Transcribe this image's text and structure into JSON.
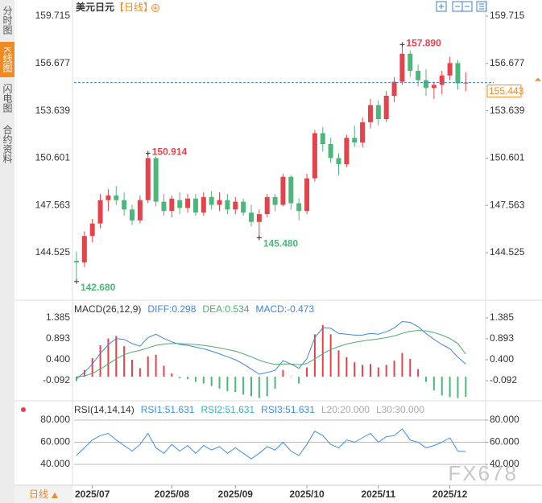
{
  "header": {
    "title": "美元日元",
    "period": "【日线】"
  },
  "sidebar": {
    "tabs": [
      "分时图",
      "K线图",
      "闪电图",
      "合约资料"
    ]
  },
  "footer": {
    "period": "日线"
  },
  "watermark": "FX678",
  "chart_data": [
    {
      "type": "candlestick",
      "open": [
        144.0,
        143.9,
        145.6,
        146.4,
        147.9,
        148.2,
        147.9,
        147.3,
        146.6,
        147.9,
        150.6,
        147.8,
        147.2,
        147.9,
        147.4,
        148.0,
        147.1,
        148.1,
        147.6,
        147.9,
        147.3,
        147.8,
        147.1,
        146.5,
        147.0,
        148.1,
        147.6,
        149.4,
        147.7,
        147.2,
        149.3,
        152.2,
        151.5,
        150.6,
        150.2,
        151.9,
        151.6,
        152.9,
        154.0,
        153.1,
        154.6,
        155.5,
        157.3,
        156.2,
        155.6,
        155.1,
        155.3,
        155.9,
        156.7,
        155.4
      ],
      "high": [
        144.6,
        145.9,
        146.7,
        148.3,
        148.6,
        148.8,
        148.4,
        147.6,
        148.2,
        150.914,
        150.7,
        148.3,
        148.2,
        148.4,
        148.3,
        148.3,
        148.4,
        148.5,
        148.4,
        148.3,
        148.1,
        148.0,
        147.6,
        147.3,
        148.3,
        148.3,
        149.6,
        149.5,
        148.0,
        149.6,
        152.4,
        152.6,
        151.9,
        150.9,
        152.1,
        152.7,
        153.2,
        154.4,
        154.3,
        154.9,
        155.8,
        157.89,
        157.5,
        156.6,
        156.3,
        155.5,
        156.2,
        157.1,
        156.9,
        156.1
      ],
      "low": [
        142.68,
        143.6,
        145.2,
        146.1,
        147.2,
        147.6,
        146.9,
        146.3,
        146.4,
        147.7,
        147.5,
        146.9,
        146.8,
        147.0,
        147.1,
        146.9,
        146.9,
        147.3,
        147.2,
        147.0,
        147.0,
        146.9,
        146.2,
        145.48,
        146.8,
        147.2,
        147.5,
        147.3,
        146.6,
        147.0,
        149.1,
        151.0,
        150.3,
        149.5,
        150.0,
        151.3,
        151.3,
        152.5,
        152.7,
        152.9,
        154.2,
        155.3,
        155.8,
        155.2,
        154.6,
        154.4,
        154.7,
        155.6,
        155.0,
        154.9
      ],
      "close": [
        143.9,
        145.6,
        146.4,
        147.9,
        148.2,
        147.9,
        147.3,
        146.6,
        147.9,
        150.6,
        147.8,
        147.2,
        148.0,
        147.4,
        148.0,
        147.1,
        148.1,
        147.6,
        147.9,
        147.3,
        147.8,
        147.1,
        146.5,
        147.0,
        148.1,
        147.6,
        149.4,
        147.7,
        147.2,
        149.3,
        152.2,
        151.5,
        150.6,
        150.2,
        151.9,
        151.6,
        152.9,
        154.0,
        153.1,
        154.6,
        155.5,
        157.3,
        156.2,
        155.6,
        155.1,
        155.3,
        155.9,
        156.7,
        155.4,
        155.443
      ],
      "colors": {
        "up": "#e5434b",
        "down": "#4db67a"
      },
      "ylim": [
        141.632,
        160.335
      ],
      "yticks": [
        144.525,
        147.563,
        150.601,
        153.639,
        156.677,
        159.715
      ],
      "xlim": [
        -0.3,
        51.5
      ],
      "xticks": [
        {
          "value": 2,
          "label": "2025/07"
        },
        {
          "value": 12,
          "label": "2025/08"
        },
        {
          "value": 20,
          "label": "2025/09"
        },
        {
          "value": 29,
          "label": "2025/10"
        },
        {
          "value": 38,
          "label": "2025/11"
        },
        {
          "value": 47,
          "label": "2025/12"
        }
      ],
      "last_price": 155.443,
      "extremes": [
        {
          "value": 157.89,
          "label": "157.890"
        },
        {
          "value": 150.914,
          "label": "150.914"
        },
        {
          "value": 145.48,
          "label": "145.480"
        },
        {
          "value": 142.68,
          "label": "142.680"
        }
      ]
    },
    {
      "type": "macd",
      "title": "MACD(26,12,9)",
      "series": [
        {
          "name": "DIFF:0.298",
          "color": "#3d86dc",
          "values": [
            -0.05,
            0.1,
            0.3,
            0.55,
            0.75,
            0.9,
            0.88,
            0.78,
            0.72,
            0.92,
            1.0,
            0.9,
            0.82,
            0.76,
            0.74,
            0.7,
            0.66,
            0.6,
            0.54,
            0.47,
            0.4,
            0.3,
            0.18,
            0.06,
            0.1,
            0.15,
            0.38,
            0.3,
            0.2,
            0.42,
            0.92,
            1.15,
            1.14,
            1.02,
            1.0,
            0.98,
            0.98,
            1.02,
            1.0,
            1.06,
            1.15,
            1.3,
            1.28,
            1.18,
            1.02,
            0.88,
            0.76,
            0.66,
            0.46,
            0.298
          ]
        },
        {
          "name": "DEA:0.534",
          "color": "#4aae6b",
          "values": [
            0.0,
            0.02,
            0.08,
            0.18,
            0.3,
            0.42,
            0.52,
            0.58,
            0.62,
            0.68,
            0.74,
            0.77,
            0.78,
            0.78,
            0.77,
            0.76,
            0.74,
            0.71,
            0.68,
            0.64,
            0.6,
            0.54,
            0.47,
            0.39,
            0.33,
            0.29,
            0.3,
            0.3,
            0.28,
            0.31,
            0.42,
            0.54,
            0.64,
            0.71,
            0.77,
            0.81,
            0.84,
            0.87,
            0.89,
            0.92,
            0.96,
            1.02,
            1.07,
            1.09,
            1.08,
            1.04,
            0.98,
            0.9,
            0.78,
            0.534
          ]
        }
      ],
      "histogram": {
        "name": "MACD:-0.473",
        "color": "#3d86dc",
        "up_color": "#e5434b",
        "down_color": "#4db67a",
        "values": [
          -0.1,
          0.16,
          0.44,
          0.74,
          0.9,
          0.96,
          0.72,
          0.4,
          0.2,
          0.48,
          0.52,
          0.26,
          0.08,
          -0.04,
          -0.06,
          -0.12,
          -0.16,
          -0.22,
          -0.28,
          -0.34,
          -0.36,
          -0.42,
          -0.46,
          -0.5,
          -0.46,
          -0.28,
          0.16,
          0,
          -0.16,
          0.22,
          1.0,
          1.22,
          1.0,
          0.62,
          0.46,
          0.34,
          0.28,
          0.3,
          0.22,
          0.28,
          0.38,
          0.56,
          0.42,
          0.18,
          -0.12,
          -0.32,
          -0.44,
          -0.48,
          -0.5,
          -0.473
        ]
      },
      "ylim": [
        -0.509,
        1.669
      ],
      "yticks": [
        -0.092,
        {
          "value": 0.4,
          "label": "0.400"
        },
        0.893,
        1.385
      ]
    },
    {
      "type": "rsi",
      "title": "RSI(14,14,14)",
      "legend": [
        {
          "label": "RSI1:51.631",
          "color": "#3d8ee8"
        },
        {
          "label": "RSI2:51.631",
          "color": "#2fb3c6"
        },
        {
          "label": "RSI3:51.631",
          "color": "#3d8ee8"
        },
        {
          "label": "L20:20.000",
          "color": "#aaaaaa"
        },
        {
          "label": "L30:30.000",
          "color": "#aaaaaa"
        }
      ],
      "color": "#3d8ee8",
      "values": [
        48,
        55,
        62,
        66,
        68,
        62,
        57,
        52,
        58,
        68,
        55,
        50,
        58,
        52,
        57,
        50,
        57,
        53,
        56,
        50,
        55,
        50,
        45,
        50,
        56,
        53,
        60,
        52,
        48,
        58,
        70,
        66,
        58,
        55,
        62,
        60,
        64,
        68,
        60,
        65,
        66,
        72,
        62,
        60,
        55,
        57,
        60,
        64,
        52,
        51.631
      ],
      "ylim": [
        23.3,
        88.7
      ],
      "yticks": [
        {
          "value": 40,
          "label": "40.000"
        },
        {
          "value": 60,
          "label": "60.000"
        },
        {
          "value": 80,
          "label": "80.000"
        }
      ],
      "grid": true
    }
  ]
}
